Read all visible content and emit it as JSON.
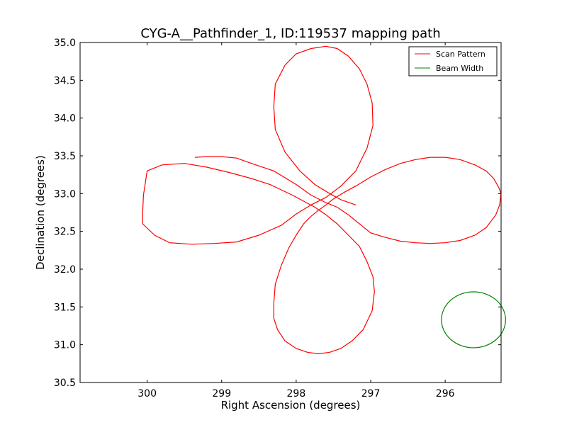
{
  "chart_data": {
    "type": "line",
    "title": "CYG-A__Pathfinder_1, ID:119537 mapping path",
    "xlabel": "Right Ascension (degrees)",
    "ylabel": "Declination (degrees)",
    "xlim": [
      300.9,
      295.25
    ],
    "ylim": [
      30.5,
      35.0
    ],
    "x_ticks": [
      300,
      299,
      298,
      297,
      296
    ],
    "y_ticks": [
      30.5,
      31.0,
      31.5,
      32.0,
      32.5,
      33.0,
      33.5,
      34.0,
      34.5,
      35.0
    ],
    "x_tick_labels": [
      "300",
      "299",
      "298",
      "297",
      "296"
    ],
    "y_tick_labels": [
      "30.5",
      "31.0",
      "31.5",
      "32.0",
      "32.5",
      "33.0",
      "33.5",
      "34.0",
      "34.5",
      "35.0"
    ],
    "grid": false,
    "legend_position": "top-right",
    "series": [
      {
        "name": "Scan Pattern",
        "color": "#ff0000",
        "x": [
          299.36,
          299.2,
          299.0,
          298.8,
          298.6,
          298.3,
          298.0,
          297.8,
          297.6,
          297.45,
          297.3,
          297.15,
          297.0,
          296.8,
          296.6,
          296.4,
          296.2,
          296.0,
          295.8,
          295.6,
          295.45,
          295.32,
          295.27,
          295.25,
          295.28,
          295.35,
          295.45,
          295.6,
          295.8,
          296.0,
          296.2,
          296.4,
          296.6,
          296.8,
          297.0,
          297.2,
          297.35,
          297.5,
          297.6,
          297.7,
          297.8,
          297.9,
          298.0,
          298.1,
          298.2,
          298.28,
          298.3,
          298.3,
          298.25,
          298.15,
          298.0,
          297.85,
          297.7,
          297.55,
          297.4,
          297.25,
          297.1,
          296.98,
          296.95,
          296.97,
          297.05,
          297.15,
          297.3,
          297.45,
          297.6,
          297.75,
          297.9,
          298.05,
          298.2,
          298.35,
          298.6,
          298.9,
          299.2,
          299.5,
          299.8,
          300.0,
          300.05,
          300.06,
          300.06,
          299.9,
          299.7,
          299.4,
          299.1,
          298.8,
          298.5,
          298.2,
          298.0,
          297.8,
          297.6,
          297.4,
          297.2,
          297.05,
          296.97,
          296.98,
          297.05,
          297.15,
          297.3,
          297.45,
          297.6,
          297.8,
          298.0,
          298.15,
          298.28,
          298.3,
          298.28,
          298.15,
          297.95,
          297.75,
          297.55,
          297.4,
          297.2
        ],
        "y": [
          33.48,
          33.49,
          33.49,
          33.47,
          33.4,
          33.3,
          33.12,
          32.98,
          32.88,
          32.82,
          32.72,
          32.6,
          32.48,
          32.42,
          32.37,
          32.35,
          32.34,
          32.35,
          32.38,
          32.45,
          32.55,
          32.72,
          32.85,
          33.0,
          33.08,
          33.2,
          33.3,
          33.38,
          33.45,
          33.48,
          33.48,
          33.45,
          33.4,
          33.32,
          33.22,
          33.1,
          33.02,
          32.93,
          32.85,
          32.78,
          32.7,
          32.6,
          32.45,
          32.28,
          32.05,
          31.8,
          31.55,
          31.35,
          31.2,
          31.05,
          30.95,
          30.9,
          30.88,
          30.9,
          30.95,
          31.05,
          31.2,
          31.45,
          31.7,
          31.9,
          32.1,
          32.3,
          32.45,
          32.6,
          32.72,
          32.82,
          32.9,
          32.98,
          33.05,
          33.12,
          33.2,
          33.28,
          33.35,
          33.4,
          33.38,
          33.3,
          32.98,
          32.75,
          32.6,
          32.45,
          32.35,
          32.33,
          32.34,
          32.36,
          32.45,
          32.58,
          32.73,
          32.85,
          32.95,
          33.1,
          33.3,
          33.6,
          33.9,
          34.2,
          34.45,
          34.65,
          34.82,
          34.92,
          34.95,
          34.92,
          34.85,
          34.7,
          34.45,
          34.15,
          33.85,
          33.55,
          33.3,
          33.12,
          33.0,
          32.92,
          32.85
        ]
      },
      {
        "name": "Beam Width",
        "color": "#008000",
        "center": [
          295.62,
          31.33
        ],
        "radius_x_deg": 0.43,
        "radius_y_deg": 0.37
      }
    ]
  }
}
